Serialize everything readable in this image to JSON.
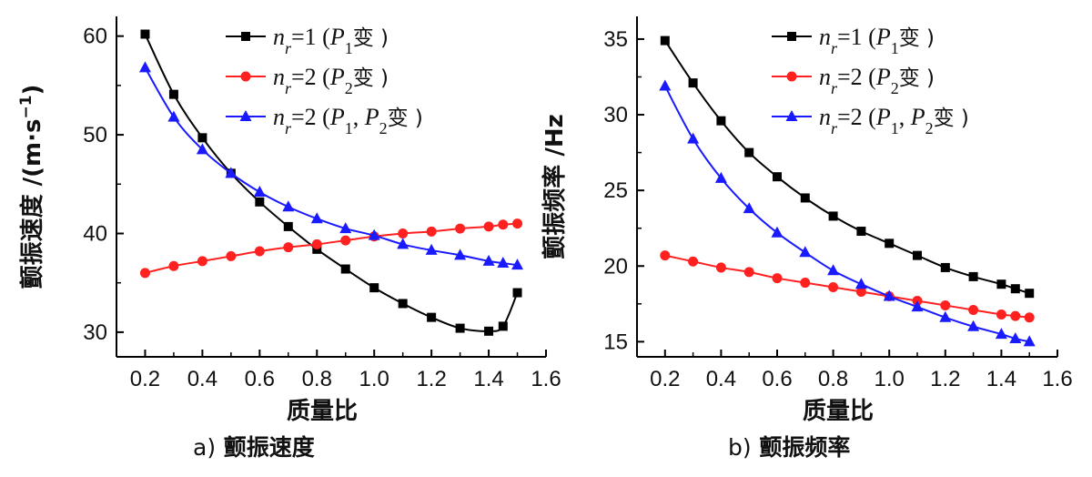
{
  "chart_data": [
    {
      "type": "line",
      "caption_prefix": "a)",
      "caption": "颤振速度",
      "xlabel": "质量比",
      "ylabel": "颤振速度  /(m·s",
      "ylabel_sup": "−1",
      "ylabel_close": ")",
      "xlim": [
        0.1,
        1.6
      ],
      "ylim": [
        27.5,
        62
      ],
      "xticks": [
        0.2,
        0.4,
        0.6,
        0.8,
        1.0,
        1.2,
        1.4,
        1.6
      ],
      "xtick_labels": [
        "0.2",
        "0.4",
        "0.6",
        "0.8",
        "1.0",
        "1.2",
        "1.4",
        "1.6"
      ],
      "yticks": [
        30,
        40,
        50,
        60
      ],
      "ytick_labels": [
        "30",
        "40",
        "50",
        "60"
      ],
      "legend_position": "top-right",
      "series": [
        {
          "name": "nr=1(P1变)",
          "legend_parts": {
            "base": "n",
            "sub": "r",
            "eq": "=1 (",
            "p": "P",
            "psub": "1",
            "psub2": "",
            "p2": "",
            "sep": "",
            "end": "变 )"
          },
          "color": "#000000",
          "marker": "square",
          "x": [
            0.2,
            0.3,
            0.4,
            0.5,
            0.6,
            0.7,
            0.8,
            0.9,
            1.0,
            1.1,
            1.2,
            1.3,
            1.4,
            1.45,
            1.5
          ],
          "y": [
            60.2,
            54.1,
            49.7,
            46.1,
            43.2,
            40.7,
            38.4,
            36.4,
            34.5,
            32.9,
            31.5,
            30.4,
            30.1,
            30.6,
            34.0
          ]
        },
        {
          "name": "nr=2(P2变)",
          "legend_parts": {
            "base": "n",
            "sub": "r",
            "eq": "=2 (",
            "p": "P",
            "psub": "2",
            "psub2": "",
            "p2": "",
            "sep": "",
            "end": "变 )"
          },
          "color": "#ff2020",
          "marker": "circle",
          "x": [
            0.2,
            0.3,
            0.4,
            0.5,
            0.6,
            0.7,
            0.8,
            0.9,
            1.0,
            1.1,
            1.2,
            1.3,
            1.4,
            1.45,
            1.5
          ],
          "y": [
            36.0,
            36.7,
            37.2,
            37.7,
            38.2,
            38.6,
            38.9,
            39.3,
            39.7,
            40.0,
            40.2,
            40.5,
            40.7,
            40.9,
            41.0
          ]
        },
        {
          "name": "nr=2(P1,P2变)",
          "legend_parts": {
            "base": "n",
            "sub": "r",
            "eq": "=2 (",
            "p": "P",
            "psub": "1",
            "sep": ", ",
            "p2": "P",
            "psub2": "2",
            "end": "变 )"
          },
          "color": "#1a1aff",
          "marker": "triangle",
          "x": [
            0.2,
            0.3,
            0.4,
            0.5,
            0.6,
            0.7,
            0.8,
            0.9,
            1.0,
            1.1,
            1.2,
            1.3,
            1.4,
            1.45,
            1.5
          ],
          "y": [
            56.8,
            51.8,
            48.5,
            46.1,
            44.2,
            42.7,
            41.5,
            40.5,
            39.8,
            38.9,
            38.3,
            37.8,
            37.2,
            37.0,
            36.8
          ]
        }
      ]
    },
    {
      "type": "line",
      "caption_prefix": "b)",
      "caption": "颤振频率",
      "xlabel": "质量比",
      "ylabel": "颤振频率  /Hz",
      "ylabel_sup": "",
      "ylabel_close": "",
      "xlim": [
        0.1,
        1.6
      ],
      "ylim": [
        14,
        36.5
      ],
      "xticks": [
        0.2,
        0.4,
        0.6,
        0.8,
        1.0,
        1.2,
        1.4,
        1.6
      ],
      "xtick_labels": [
        "0.2",
        "0.4",
        "0.6",
        "0.8",
        "1.0",
        "1.2",
        "1.4",
        "1.6"
      ],
      "yticks": [
        15,
        20,
        25,
        30,
        35
      ],
      "ytick_labels": [
        "15",
        "20",
        "25",
        "30",
        "35"
      ],
      "legend_position": "top-right",
      "series": [
        {
          "name": "nr=1(P1变)",
          "legend_parts": {
            "base": "n",
            "sub": "r",
            "eq": "=1 (",
            "p": "P",
            "psub": "1",
            "psub2": "",
            "p2": "",
            "sep": "",
            "end": "变 )"
          },
          "color": "#000000",
          "marker": "square",
          "x": [
            0.2,
            0.3,
            0.4,
            0.5,
            0.6,
            0.7,
            0.8,
            0.9,
            1.0,
            1.1,
            1.2,
            1.3,
            1.4,
            1.45,
            1.5
          ],
          "y": [
            34.9,
            32.1,
            29.6,
            27.5,
            25.9,
            24.5,
            23.3,
            22.3,
            21.5,
            20.7,
            19.9,
            19.3,
            18.8,
            18.5,
            18.2
          ]
        },
        {
          "name": "nr=2(P2变)",
          "legend_parts": {
            "base": "n",
            "sub": "r",
            "eq": "=2 (",
            "p": "P",
            "psub": "2",
            "psub2": "",
            "p2": "",
            "sep": "",
            "end": "变 )"
          },
          "color": "#ff2020",
          "marker": "circle",
          "x": [
            0.2,
            0.3,
            0.4,
            0.5,
            0.6,
            0.7,
            0.8,
            0.9,
            1.0,
            1.1,
            1.2,
            1.3,
            1.4,
            1.45,
            1.5
          ],
          "y": [
            20.7,
            20.3,
            19.9,
            19.6,
            19.2,
            18.9,
            18.6,
            18.3,
            18.0,
            17.7,
            17.4,
            17.1,
            16.8,
            16.7,
            16.6
          ]
        },
        {
          "name": "nr=2(P1,P2变)",
          "legend_parts": {
            "base": "n",
            "sub": "r",
            "eq": "=2 (",
            "p": "P",
            "psub": "1",
            "sep": ", ",
            "p2": "P",
            "psub2": "2",
            "end": "变 )"
          },
          "color": "#1a1aff",
          "marker": "triangle",
          "x": [
            0.2,
            0.3,
            0.4,
            0.5,
            0.6,
            0.7,
            0.8,
            0.9,
            1.0,
            1.1,
            1.2,
            1.3,
            1.4,
            1.45,
            1.5
          ],
          "y": [
            31.9,
            28.4,
            25.8,
            23.8,
            22.2,
            20.9,
            19.7,
            18.8,
            18.0,
            17.3,
            16.6,
            16.0,
            15.5,
            15.2,
            15.0
          ]
        }
      ]
    }
  ]
}
